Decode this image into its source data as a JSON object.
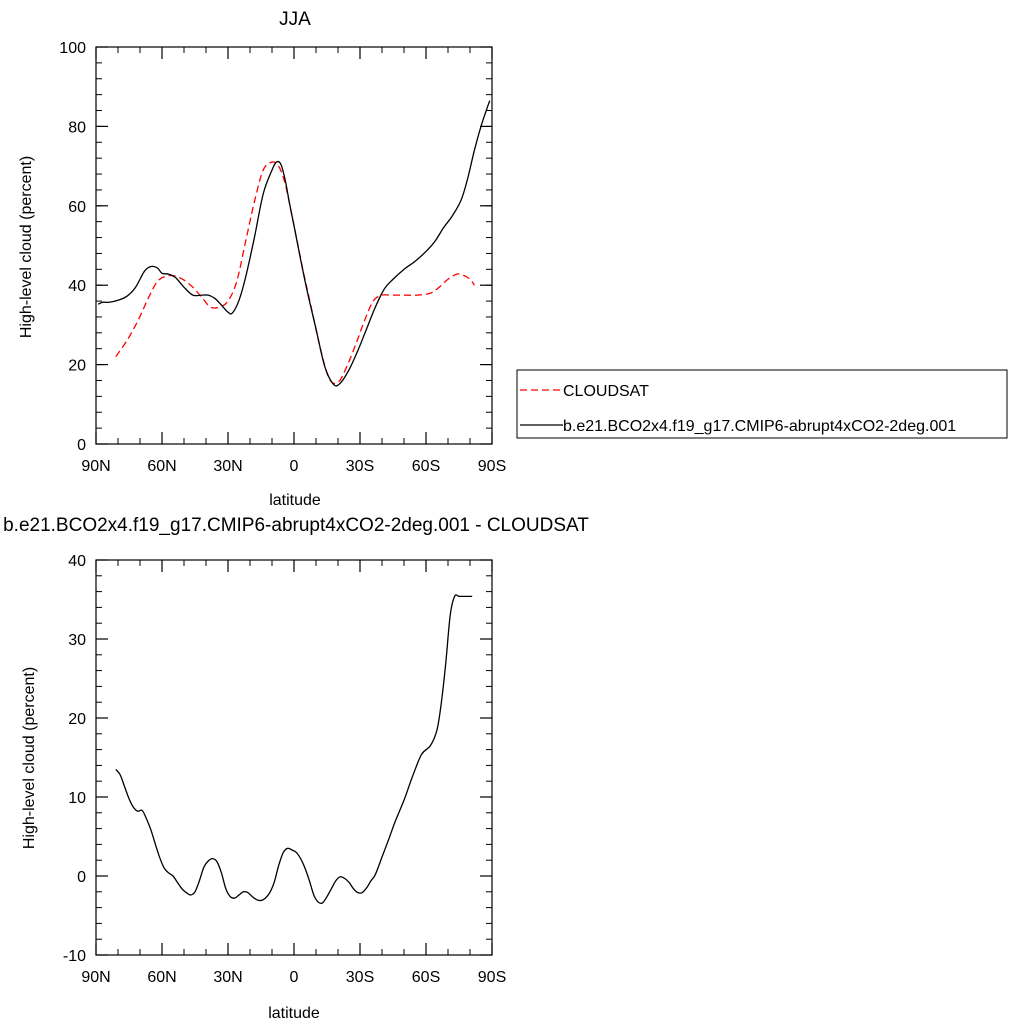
{
  "chart_data": [
    {
      "type": "line",
      "title": "JJA",
      "xlabel": "latitude",
      "ylabel": "High-level cloud (percent)",
      "xlim": [
        90,
        -90
      ],
      "ylim": [
        0,
        100
      ],
      "xticks": [
        {
          "value": 90,
          "label": "90N"
        },
        {
          "value": 60,
          "label": "60N"
        },
        {
          "value": 30,
          "label": "30N"
        },
        {
          "value": 0,
          "label": "0"
        },
        {
          "value": -30,
          "label": "30S"
        },
        {
          "value": -60,
          "label": "60S"
        },
        {
          "value": -90,
          "label": "90S"
        }
      ],
      "yticks": [
        {
          "value": 0,
          "label": "0"
        },
        {
          "value": 20,
          "label": "20"
        },
        {
          "value": 40,
          "label": "40"
        },
        {
          "value": 60,
          "label": "60"
        },
        {
          "value": 80,
          "label": "80"
        },
        {
          "value": 100,
          "label": "100"
        }
      ],
      "legend_position": "right",
      "series": [
        {
          "name": "CLOUDSAT",
          "color": "#ff0000",
          "dash": "dashed",
          "x": [
            81,
            76,
            71,
            66,
            62,
            58,
            54,
            50,
            46,
            42,
            38,
            34,
            30,
            26,
            22,
            18,
            14,
            10,
            7,
            4,
            0,
            -4,
            -8,
            -12,
            -16,
            -20,
            -24,
            -28,
            -32,
            -36,
            -40,
            -44,
            -50,
            -56,
            -62,
            -66,
            -70,
            -74,
            -77,
            -80,
            -82
          ],
          "y": [
            22,
            26,
            31,
            37,
            41,
            42.3,
            42.3,
            41.3,
            39.5,
            37,
            34.5,
            34.5,
            36,
            41,
            51,
            61,
            69,
            71,
            70,
            65.5,
            55,
            44,
            34,
            24,
            16.5,
            15.5,
            19.5,
            25,
            31,
            36,
            37.5,
            37.5,
            37.5,
            37.5,
            38,
            39.5,
            41.5,
            42.8,
            42.5,
            41.5,
            40
          ]
        },
        {
          "name": "b.e21.BCO2x4.f19_g17.CMIP6-abrupt4xCO2-2deg.001",
          "color": "#000000",
          "dash": "solid",
          "x": [
            89,
            87,
            84,
            80,
            76,
            72,
            68,
            65,
            62,
            60,
            57,
            54,
            50,
            46,
            42,
            39,
            36,
            33,
            30,
            28,
            25,
            22,
            18,
            14,
            10,
            8,
            6,
            4,
            2,
            0,
            -3,
            -6,
            -10,
            -14,
            -18,
            -21,
            -25,
            -29,
            -33,
            -37,
            -41,
            -45,
            -50,
            -55,
            -60,
            -64,
            -68,
            -72,
            -76,
            -79,
            -82,
            -85,
            -88,
            -89
          ],
          "y": [
            35.2,
            35.7,
            35.7,
            36.2,
            37.2,
            39.5,
            43.5,
            44.7,
            44.3,
            43,
            42.8,
            42,
            39.5,
            37.5,
            37.5,
            37.5,
            36.7,
            35,
            33.2,
            33,
            36.2,
            42,
            52,
            63,
            69,
            71,
            70.5,
            66.5,
            60.5,
            55,
            46.5,
            38.5,
            29,
            19.5,
            15,
            15.3,
            18.7,
            23.5,
            29,
            34.5,
            39,
            41.5,
            44,
            46,
            48.5,
            51,
            54.5,
            57.5,
            61.5,
            67,
            74,
            80,
            85,
            86.5
          ]
        }
      ]
    },
    {
      "type": "line",
      "title": "b.e21.BCO2x4.f19_g17.CMIP6-abrupt4xCO2-2deg.001 - CLOUDSAT",
      "xlabel": "latitude",
      "ylabel": "High-level cloud (percent)",
      "xlim": [
        90,
        -90
      ],
      "ylim": [
        -10,
        40
      ],
      "xticks": [
        {
          "value": 90,
          "label": "90N"
        },
        {
          "value": 60,
          "label": "60N"
        },
        {
          "value": 30,
          "label": "30N"
        },
        {
          "value": 0,
          "label": "0"
        },
        {
          "value": -30,
          "label": "30S"
        },
        {
          "value": -60,
          "label": "60S"
        },
        {
          "value": -90,
          "label": "90S"
        }
      ],
      "yticks": [
        {
          "value": -10,
          "label": "-10"
        },
        {
          "value": 0,
          "label": "0"
        },
        {
          "value": 10,
          "label": "10"
        },
        {
          "value": 20,
          "label": "20"
        },
        {
          "value": 30,
          "label": "30"
        },
        {
          "value": 40,
          "label": "40"
        }
      ],
      "series": [
        {
          "color": "#000000",
          "dash": "solid",
          "x": [
            81,
            79,
            77,
            75,
            73,
            71,
            69,
            67,
            65,
            63,
            61,
            59,
            57,
            55,
            53,
            51,
            49,
            47,
            45,
            43,
            41,
            39,
            37,
            35,
            33,
            31,
            29,
            27,
            25,
            23,
            21,
            19,
            17,
            15,
            13,
            11,
            9,
            7,
            5,
            3,
            1,
            -1,
            -3,
            -5,
            -7,
            -9,
            -11,
            -13,
            -15,
            -17,
            -19,
            -21,
            -23,
            -25,
            -27,
            -29,
            -31,
            -33,
            -35,
            -37,
            -40,
            -43,
            -46,
            -50,
            -54,
            -58,
            -62,
            -65,
            -67,
            -69,
            -71,
            -73,
            -75,
            -77,
            -79,
            -81
          ],
          "y": [
            13.5,
            12.8,
            11.3,
            9.8,
            8.7,
            8.2,
            8.3,
            7.2,
            5.8,
            4.0,
            2.3,
            1.0,
            0.4,
            0.0,
            -0.8,
            -1.6,
            -2.1,
            -2.4,
            -2.0,
            -0.6,
            1.1,
            1.9,
            2.2,
            1.8,
            0.4,
            -1.6,
            -2.6,
            -2.8,
            -2.4,
            -2.0,
            -2.1,
            -2.6,
            -3.0,
            -3.1,
            -2.8,
            -2.1,
            -0.8,
            1.3,
            2.9,
            3.5,
            3.3,
            3.0,
            2.2,
            1.0,
            -0.6,
            -2.4,
            -3.3,
            -3.4,
            -2.6,
            -1.6,
            -0.6,
            -0.1,
            -0.3,
            -0.8,
            -1.6,
            -2.1,
            -2.1,
            -1.5,
            -0.6,
            0.2,
            2.4,
            4.6,
            6.9,
            9.6,
            12.7,
            15.4,
            16.5,
            18.5,
            22.0,
            27.0,
            33.0,
            35.4,
            35.4,
            35.4,
            35.4,
            35.4
          ]
        }
      ]
    }
  ]
}
